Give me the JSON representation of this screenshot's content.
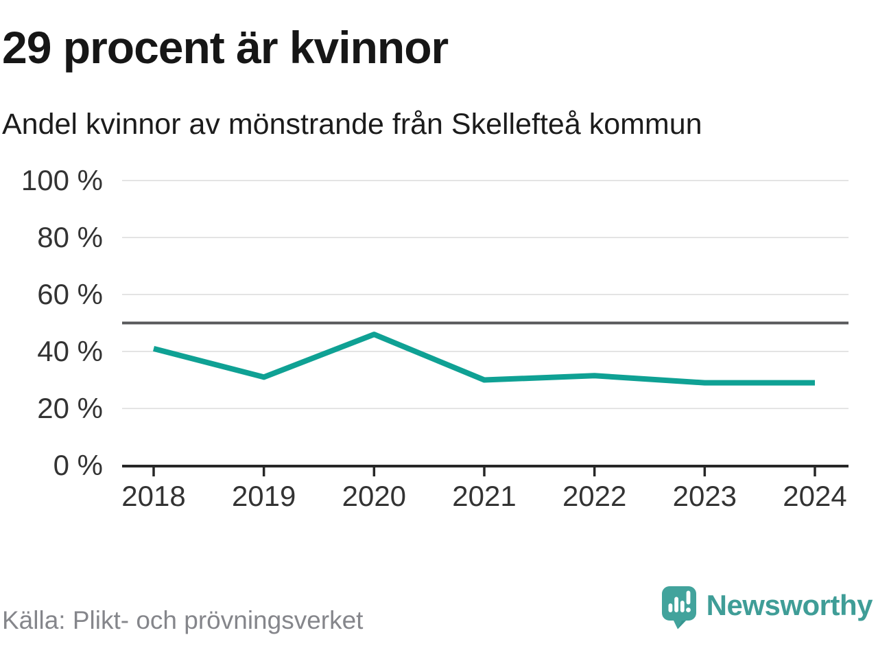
{
  "header": {
    "title": "29 procent är kvinnor",
    "subtitle": "Andel kvinnor av mönstrande från Skellefteå kommun"
  },
  "chart_data": {
    "type": "line",
    "title": "29 procent är kvinnor",
    "subtitle": "Andel kvinnor av mönstrande från Skellefteå kommun",
    "categories": [
      "2018",
      "2019",
      "2020",
      "2021",
      "2022",
      "2023",
      "2024"
    ],
    "series": [
      {
        "name": "Andel kvinnor av mönstrande",
        "values": [
          41,
          31,
          46,
          30,
          31.5,
          29,
          29
        ]
      }
    ],
    "unit": "%",
    "xlabel": "",
    "ylabel": "",
    "ylim": [
      0,
      100
    ],
    "yticks": [
      0,
      20,
      40,
      60,
      80,
      100
    ],
    "ytick_labels": [
      "0 %",
      "20 %",
      "40 %",
      "60 %",
      "80 %",
      "100 %"
    ],
    "reference_line": 50,
    "grid": true,
    "legend": "none",
    "colors": {
      "line": "#0fa194",
      "grid": "#e4e4e4",
      "reference": "#58595b",
      "axis": "#272727",
      "tick_label": "#333333"
    }
  },
  "footer": {
    "source": "Källa: Plikt- och prövningsverket",
    "logo_text": "Newsworthy",
    "logo_colors": {
      "bubble": "#42a39c",
      "bubble_shade": "#2d8d86",
      "bars": "#ffffff",
      "text": "#3f9d97"
    }
  }
}
